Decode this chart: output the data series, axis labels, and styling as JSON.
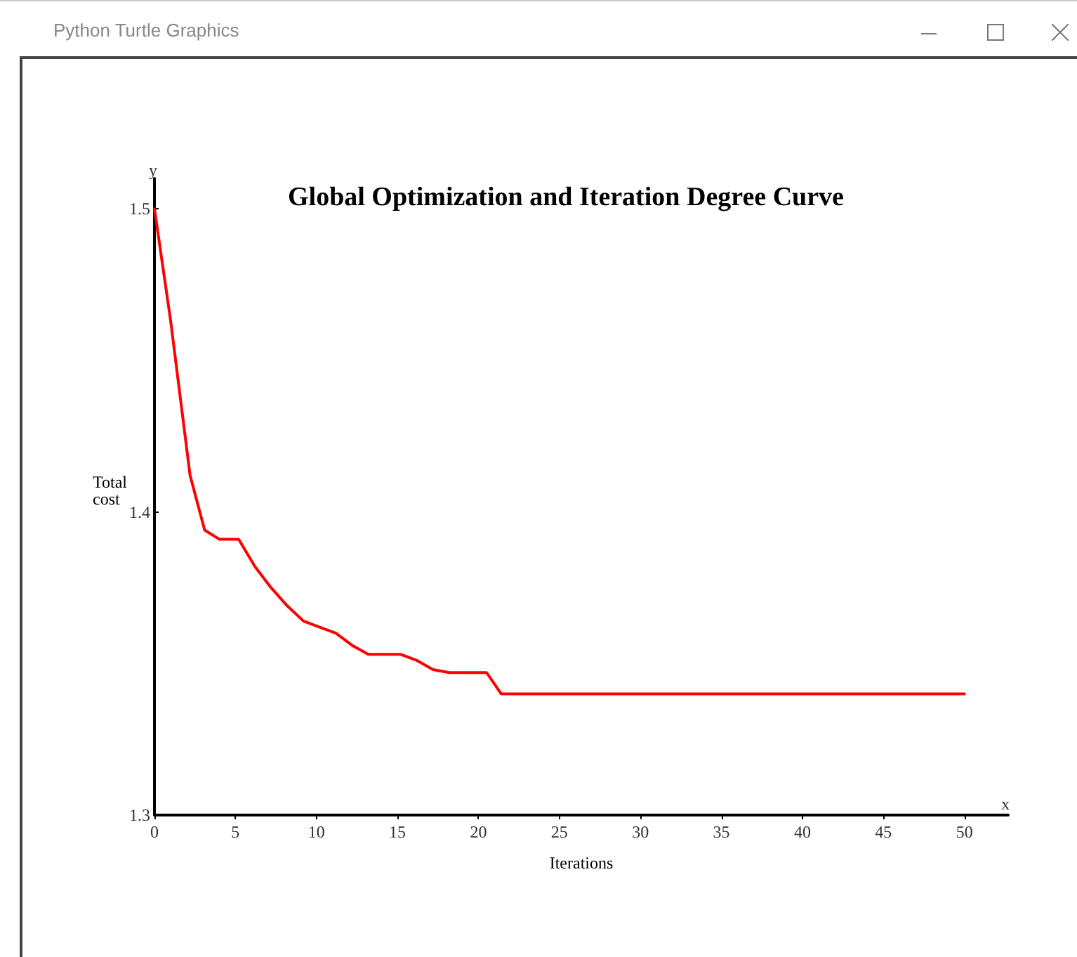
{
  "chart_data": {
    "type": "line",
    "title": "Global Optimization and Iteration Degree Curve",
    "xlabel": "Iterations",
    "ylabel": "Total cost",
    "annotations": [
      "Python Turtle Graphics",
      "x",
      "y"
    ],
    "x": [
      0,
      1,
      2.2,
      3.1,
      4,
      5.2,
      6.2,
      7.2,
      8.2,
      9.2,
      10.2,
      11.2,
      12.2,
      13.2,
      15.2,
      16.2,
      17.2,
      18.2,
      20.5,
      21.4,
      50
    ],
    "series": [
      {
        "color": "#ff0000",
        "values": [
          1.5,
          1.463,
          1.412,
          1.394,
          1.391,
          1.391,
          1.382,
          1.375,
          1.369,
          1.364,
          1.362,
          1.36,
          1.356,
          1.353,
          1.353,
          1.351,
          1.348,
          1.347,
          1.347,
          1.34,
          1.34
        ]
      }
    ],
    "xlim": [
      0,
      52.7
    ],
    "xticks": [
      0,
      5,
      10,
      15,
      20,
      25,
      30,
      35,
      40,
      45,
      50
    ],
    "ylim": [
      1.3,
      1.51
    ],
    "yticks": [
      1.3,
      1.4,
      1.5
    ],
    "grid": false,
    "marker": "none",
    "line_style": "solid"
  }
}
